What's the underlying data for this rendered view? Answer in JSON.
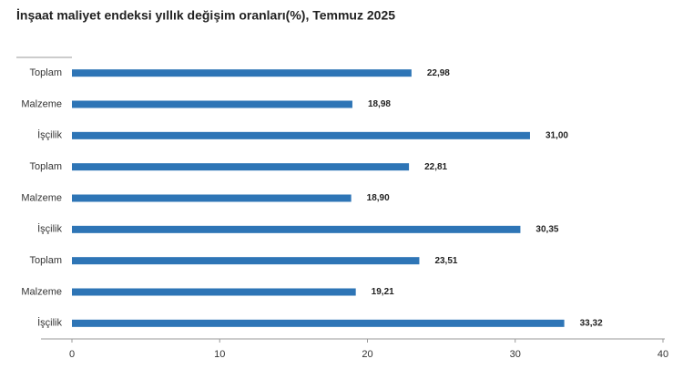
{
  "chart_data": {
    "type": "hbar",
    "title": "İnşaat maliyet endeksi yıllık değişim oranları(%), Temmuz 2025",
    "categories": [
      "Toplam",
      "Malzeme",
      "İşçilik",
      "Toplam",
      "Malzeme",
      "İşçilik",
      "Toplam",
      "Malzeme",
      "İşçilik"
    ],
    "values": [
      22.98,
      18.98,
      31.0,
      22.81,
      18.9,
      30.35,
      23.51,
      19.21,
      33.32
    ],
    "value_labels": [
      "22,98",
      "18,98",
      "31,00",
      "22,81",
      "18,90",
      "30,35",
      "23,51",
      "19,21",
      "33,32"
    ],
    "color": "#2e75b6",
    "xlim": [
      0,
      40
    ],
    "xticks": [
      0,
      10,
      20,
      30,
      40
    ]
  }
}
